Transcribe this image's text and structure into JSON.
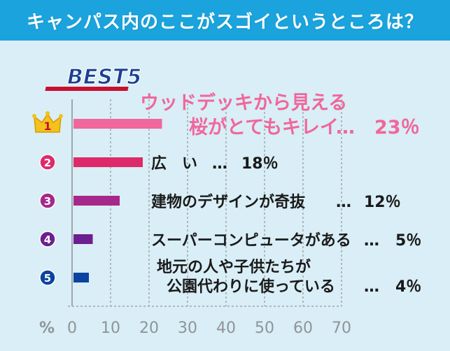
{
  "title": "キャンパス内のここがスゴイというところは？",
  "badge": "BEST5",
  "colors": {
    "title_bg": "#1aa3dc",
    "background": "#d9eef6",
    "grid": "#9fa8ac",
    "rank1": "#f0679b",
    "rank2": "#dd2b6a",
    "rank3": "#a6288b",
    "rank4": "#6c1f8f",
    "rank5": "#0b43a0",
    "crown": "#f4c21b"
  },
  "chart_data": {
    "type": "bar",
    "orientation": "horizontal",
    "title": "キャンパス内のここがスゴイというところは？",
    "axis_unit_label": "%",
    "xlim": [
      0,
      70
    ],
    "xticks": [
      "0",
      "10",
      "20",
      "30",
      "40",
      "50",
      "60",
      "70"
    ],
    "grid": true,
    "ranks": [
      "1",
      "2",
      "3",
      "4",
      "5"
    ],
    "categories": [
      [
        "ウッドデッキから見える",
        "桜がとてもキレイ"
      ],
      [
        "広　い"
      ],
      [
        "建物のデザインが奇抜"
      ],
      [
        "スーパーコンピュータがある"
      ],
      [
        "地元の人や子供たちが",
        "公園代わりに使っている"
      ]
    ],
    "values": [
      23,
      18,
      12,
      5,
      4
    ],
    "value_labels": [
      "23％",
      "18％",
      "12％",
      "5％",
      "4％"
    ],
    "separator": "…"
  }
}
